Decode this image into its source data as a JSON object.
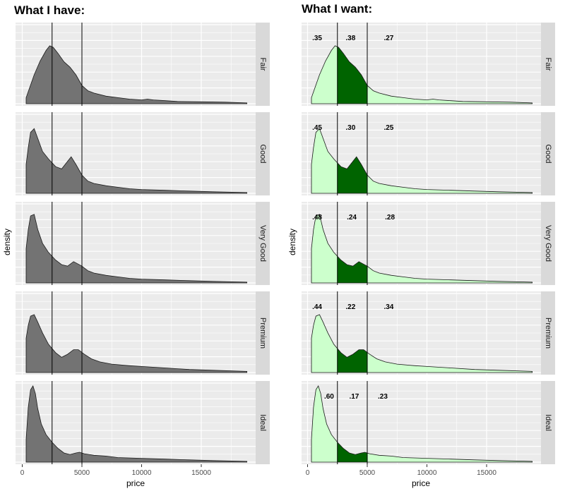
{
  "colors": {
    "panel_bg": "#ebebeb",
    "grid": "#ffffff",
    "strip_bg": "#d9d9d9",
    "density_fill_have": "#737373",
    "density_fill_outer": "#ccffcc",
    "density_fill_middle": "#006400",
    "outline": "#1a1a1a",
    "vline": "#000000"
  },
  "chart_data": [
    {
      "type": "area",
      "subtype": "faceted-density",
      "title": "What I have:",
      "xlabel": "price",
      "ylabel": "density",
      "xlim": [
        0,
        20000
      ],
      "x_ticks": [
        0,
        5000,
        10000,
        15000
      ],
      "x_tick_labels": [
        "0",
        "5000",
        "10000",
        "15000"
      ],
      "data_range": [
        326,
        18823
      ],
      "vlines": [
        2500,
        5000
      ],
      "facets": [
        "Fair",
        "Good",
        "Very Good",
        "Premium",
        "Ideal"
      ],
      "series": [
        {
          "name": "Fair",
          "x": [
            326,
            1000,
            1500,
            2000,
            2300,
            2600,
            3000,
            3500,
            4000,
            4500,
            5000,
            5500,
            6000,
            7000,
            8000,
            9000,
            10000,
            10500,
            11000,
            12000,
            13000,
            15000,
            17000,
            18823
          ],
          "y": [
            0.08,
            0.38,
            0.56,
            0.7,
            0.76,
            0.74,
            0.66,
            0.55,
            0.48,
            0.38,
            0.24,
            0.17,
            0.14,
            0.1,
            0.08,
            0.06,
            0.05,
            0.06,
            0.05,
            0.04,
            0.03,
            0.025,
            0.02,
            0.01
          ]
        },
        {
          "name": "Good",
          "x": [
            326,
            500,
            700,
            1000,
            1300,
            1700,
            2200,
            2800,
            3300,
            3800,
            4100,
            4500,
            5000,
            5500,
            6000,
            7000,
            8000,
            9000,
            10000,
            12000,
            14000,
            16000,
            18823
          ],
          "y": [
            0.38,
            0.6,
            0.8,
            0.85,
            0.72,
            0.55,
            0.45,
            0.35,
            0.32,
            0.42,
            0.48,
            0.38,
            0.24,
            0.16,
            0.13,
            0.1,
            0.08,
            0.06,
            0.05,
            0.04,
            0.03,
            0.02,
            0.01
          ]
        },
        {
          "name": "Very Good",
          "x": [
            326,
            500,
            700,
            1000,
            1300,
            1700,
            2200,
            2800,
            3300,
            3800,
            4300,
            5000,
            5500,
            6000,
            7000,
            8000,
            9000,
            10000,
            12000,
            14000,
            16000,
            18823
          ],
          "y": [
            0.45,
            0.7,
            0.88,
            0.9,
            0.7,
            0.52,
            0.4,
            0.3,
            0.24,
            0.22,
            0.28,
            0.22,
            0.16,
            0.13,
            0.1,
            0.08,
            0.06,
            0.05,
            0.04,
            0.03,
            0.02,
            0.01
          ]
        },
        {
          "name": "Premium",
          "x": [
            326,
            500,
            700,
            1000,
            1300,
            1700,
            2200,
            2800,
            3300,
            3800,
            4300,
            4700,
            5200,
            5800,
            6500,
            7500,
            9000,
            10000,
            12000,
            14000,
            16000,
            18823
          ],
          "y": [
            0.45,
            0.62,
            0.74,
            0.76,
            0.66,
            0.52,
            0.37,
            0.26,
            0.2,
            0.24,
            0.3,
            0.3,
            0.24,
            0.18,
            0.14,
            0.11,
            0.09,
            0.08,
            0.06,
            0.04,
            0.03,
            0.015
          ]
        },
        {
          "name": "Ideal",
          "x": [
            326,
            500,
            700,
            900,
            1100,
            1300,
            1600,
            2000,
            2500,
            3000,
            3500,
            4000,
            4500,
            4800,
            5200,
            6000,
            7000,
            8000,
            10000,
            12000,
            14000,
            16000,
            18823
          ],
          "y": [
            0.3,
            0.72,
            0.95,
            1.0,
            0.9,
            0.7,
            0.5,
            0.36,
            0.26,
            0.18,
            0.12,
            0.1,
            0.12,
            0.13,
            0.11,
            0.09,
            0.08,
            0.06,
            0.05,
            0.04,
            0.03,
            0.02,
            0.01
          ]
        }
      ]
    },
    {
      "type": "area",
      "subtype": "faceted-density-shaded",
      "title": "What I want:",
      "xlabel": "price",
      "ylabel": "density",
      "xlim": [
        0,
        20000
      ],
      "x_ticks": [
        0,
        5000,
        10000,
        15000
      ],
      "x_tick_labels": [
        "0",
        "5000",
        "10000",
        "15000"
      ],
      "vlines": [
        2500,
        5000
      ],
      "facets": [
        "Fair",
        "Good",
        "Very Good",
        "Premium",
        "Ideal"
      ],
      "shading": {
        "middle_range": [
          2500,
          5000
        ]
      },
      "annotations": [
        {
          "facet": "Fair",
          "labels": [
            ".35",
            ".38",
            ".27"
          ],
          "x": [
            800,
            3600,
            6800
          ]
        },
        {
          "facet": "Good",
          "labels": [
            ".45",
            ".30",
            ".25"
          ],
          "x": [
            800,
            3600,
            6800
          ]
        },
        {
          "facet": "Very Good",
          "labels": [
            ".48",
            ".24",
            ".28"
          ],
          "x": [
            800,
            3700,
            6900
          ]
        },
        {
          "facet": "Premium",
          "labels": [
            ".44",
            ".22",
            ".34"
          ],
          "x": [
            800,
            3600,
            6800
          ]
        },
        {
          "facet": "Ideal",
          "labels": [
            ".60",
            ".17",
            ".23"
          ],
          "x": [
            1800,
            3900,
            6300
          ]
        }
      ]
    }
  ]
}
